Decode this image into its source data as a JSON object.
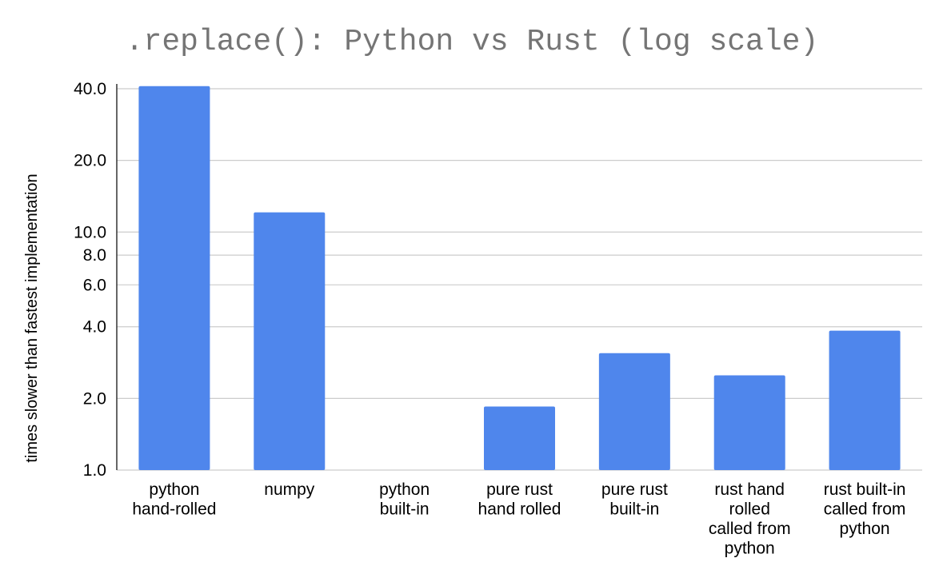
{
  "chart_data": {
    "type": "bar",
    "title": ".replace(): Python vs Rust (log scale)",
    "xlabel": "",
    "ylabel": "times slower than fastest implementation",
    "y_scale": "log",
    "ylim": [
      1.0,
      40.0
    ],
    "y_ticks": [
      1.0,
      2.0,
      4.0,
      6.0,
      8.0,
      10.0,
      20.0,
      40.0
    ],
    "y_tick_labels": [
      "1.0",
      "2.0",
      "4.0",
      "6.0",
      "8.0",
      "10.0",
      "20.0",
      "40.0"
    ],
    "grid": true,
    "legend": "none",
    "bar_color": "#4f86ec",
    "categories": [
      [
        "python",
        "hand-rolled"
      ],
      [
        "numpy"
      ],
      [
        "python",
        "built-in"
      ],
      [
        "pure rust",
        "hand rolled"
      ],
      [
        "pure rust",
        "built-in"
      ],
      [
        "rust hand",
        "rolled",
        "called from",
        "python"
      ],
      [
        "rust built-in",
        "called from",
        "python"
      ]
    ],
    "values": [
      41.0,
      12.1,
      1.0,
      1.85,
      3.1,
      2.5,
      3.85
    ]
  }
}
